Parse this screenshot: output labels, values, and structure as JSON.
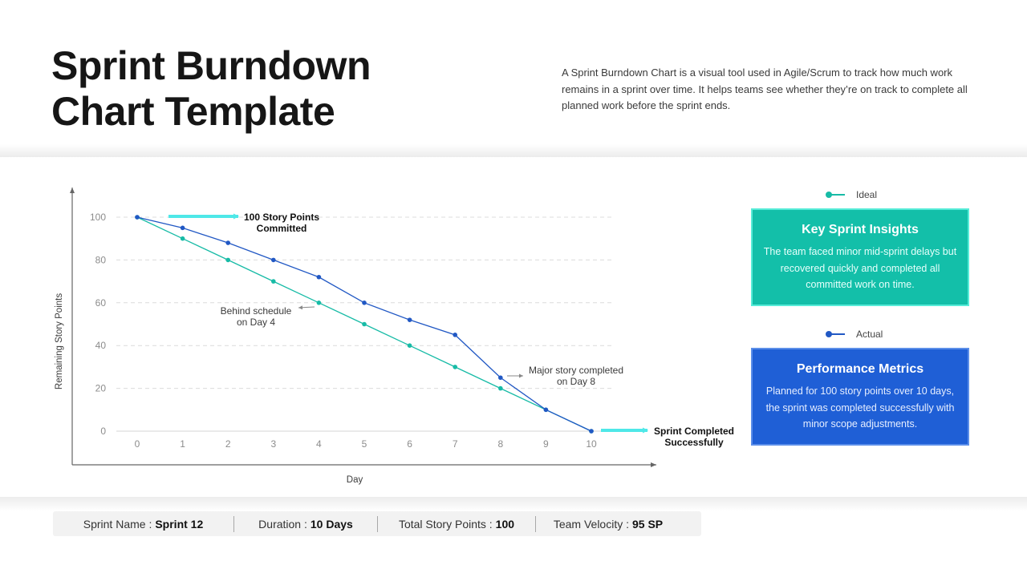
{
  "header": {
    "title_line1": "Sprint Burndown",
    "title_line2": "Chart Template",
    "description": "A Sprint Burndown Chart is a visual tool used in Agile/Scrum to track how much work remains in a sprint over time. It helps teams see whether they’re on track to complete all planned work before the sprint ends."
  },
  "chart_data": {
    "type": "line",
    "title": "Sprint Burndown Chart",
    "xlabel": "Day",
    "ylabel": "Remaining Story Points",
    "x": [
      0,
      1,
      2,
      3,
      4,
      5,
      6,
      7,
      8,
      9,
      10
    ],
    "ylim": [
      0,
      100
    ],
    "yticks": [
      0,
      20,
      40,
      60,
      80,
      100
    ],
    "grid": "horizontal-dashed",
    "series": [
      {
        "name": "Ideal",
        "color": "#17bba6",
        "values": [
          100,
          90,
          80,
          70,
          60,
          50,
          40,
          30,
          20,
          10,
          0
        ]
      },
      {
        "name": "Actual",
        "color": "#2158c4",
        "values": [
          100,
          95,
          88,
          80,
          72,
          60,
          52,
          45,
          25,
          10,
          0
        ]
      }
    ],
    "annotations": [
      {
        "text": "100 Story Points Committed",
        "line1": "100 Story Points",
        "line2": "Committed",
        "at": [
          0,
          100
        ]
      },
      {
        "text": "Behind schedule on Day 4",
        "line1": "Behind schedule",
        "line2": "on Day 4",
        "at": [
          4,
          60
        ]
      },
      {
        "text": "Major story completed on Day 8",
        "line1": "Major story completed",
        "line2": "on Day 8",
        "at": [
          8,
          25
        ]
      },
      {
        "text": "Sprint Completed Successfully",
        "line1": "Sprint Completed",
        "line2": "Successfully",
        "at": [
          10,
          0
        ]
      }
    ],
    "legend_position": "right"
  },
  "legend": {
    "ideal_label": "Ideal",
    "actual_label": "Actual"
  },
  "cards": {
    "insights": {
      "title": "Key Sprint Insights",
      "body": "The team faced minor mid-sprint delays but recovered quickly and completed all committed work on time.",
      "color": "#13bfa9"
    },
    "metrics": {
      "title": "Performance Metrics",
      "body": "Planned for 100 story points over 10 days, the sprint was completed successfully with minor scope adjustments.",
      "color": "#1f5fd6"
    }
  },
  "stats": [
    {
      "label": "Sprint Name :",
      "value": "Sprint 12"
    },
    {
      "label": "Duration :",
      "value": "10 Days"
    },
    {
      "label": "Total Story Points :",
      "value": "100"
    },
    {
      "label": "Team Velocity :",
      "value": "95 SP"
    }
  ]
}
